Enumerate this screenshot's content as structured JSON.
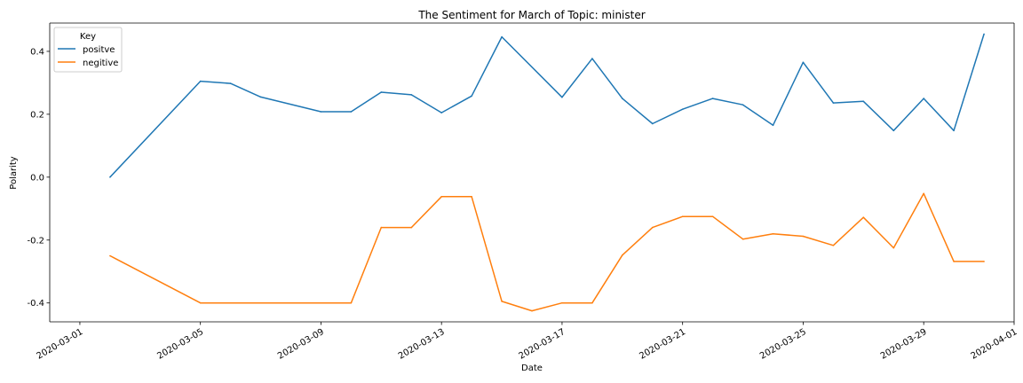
{
  "chart_data": {
    "type": "line",
    "title": "The Sentiment for March of Topic: minister",
    "xlabel": "Date",
    "ylabel": "Polarity",
    "x_range": [
      "2020-02-29",
      "2020-04-01"
    ],
    "ylim": [
      -0.46,
      0.49
    ],
    "grid": false,
    "legend": {
      "title": "Key",
      "placement": "top-left"
    },
    "x_ticks": [
      "2020-03-01",
      "2020-03-05",
      "2020-03-09",
      "2020-03-13",
      "2020-03-17",
      "2020-03-21",
      "2020-03-25",
      "2020-03-29",
      "2020-04-01"
    ],
    "y_ticks": [
      "-0.4",
      "-0.2",
      "0.0",
      "0.2",
      "0.4"
    ],
    "series": [
      {
        "name": "positve",
        "color": "#1f77b4",
        "points": [
          [
            "2020-03-02",
            0.0
          ],
          [
            "2020-03-05",
            0.305
          ],
          [
            "2020-03-06",
            0.298
          ],
          [
            "2020-03-07",
            0.255
          ],
          [
            "2020-03-09",
            0.208
          ],
          [
            "2020-03-10",
            0.208
          ],
          [
            "2020-03-11",
            0.27
          ],
          [
            "2020-03-12",
            0.262
          ],
          [
            "2020-03-13",
            0.205
          ],
          [
            "2020-03-14",
            0.258
          ],
          [
            "2020-03-15",
            0.446
          ],
          [
            "2020-03-17",
            0.254
          ],
          [
            "2020-03-18",
            0.377
          ],
          [
            "2020-03-19",
            0.25
          ],
          [
            "2020-03-20",
            0.17
          ],
          [
            "2020-03-21",
            0.216
          ],
          [
            "2020-03-22",
            0.25
          ],
          [
            "2020-03-23",
            0.23
          ],
          [
            "2020-03-24",
            0.165
          ],
          [
            "2020-03-25",
            0.365
          ],
          [
            "2020-03-26",
            0.236
          ],
          [
            "2020-03-27",
            0.241
          ],
          [
            "2020-03-28",
            0.148
          ],
          [
            "2020-03-29",
            0.25
          ],
          [
            "2020-03-30",
            0.148
          ],
          [
            "2020-03-31",
            0.455
          ]
        ]
      },
      {
        "name": "negitive",
        "color": "#ff7f0e",
        "points": [
          [
            "2020-03-02",
            -0.25
          ],
          [
            "2020-03-05",
            -0.4
          ],
          [
            "2020-03-10",
            -0.4
          ],
          [
            "2020-03-11",
            -0.16
          ],
          [
            "2020-03-12",
            -0.16
          ],
          [
            "2020-03-13",
            -0.062
          ],
          [
            "2020-03-14",
            -0.062
          ],
          [
            "2020-03-15",
            -0.395
          ],
          [
            "2020-03-16",
            -0.425
          ],
          [
            "2020-03-17",
            -0.4
          ],
          [
            "2020-03-18",
            -0.4
          ],
          [
            "2020-03-19",
            -0.248
          ],
          [
            "2020-03-20",
            -0.16
          ],
          [
            "2020-03-21",
            -0.125
          ],
          [
            "2020-03-22",
            -0.125
          ],
          [
            "2020-03-23",
            -0.197
          ],
          [
            "2020-03-24",
            -0.18
          ],
          [
            "2020-03-25",
            -0.188
          ],
          [
            "2020-03-26",
            -0.217
          ],
          [
            "2020-03-27",
            -0.128
          ],
          [
            "2020-03-28",
            -0.225
          ],
          [
            "2020-03-29",
            -0.052
          ],
          [
            "2020-03-30",
            -0.268
          ],
          [
            "2020-03-31",
            -0.268
          ]
        ]
      }
    ]
  }
}
